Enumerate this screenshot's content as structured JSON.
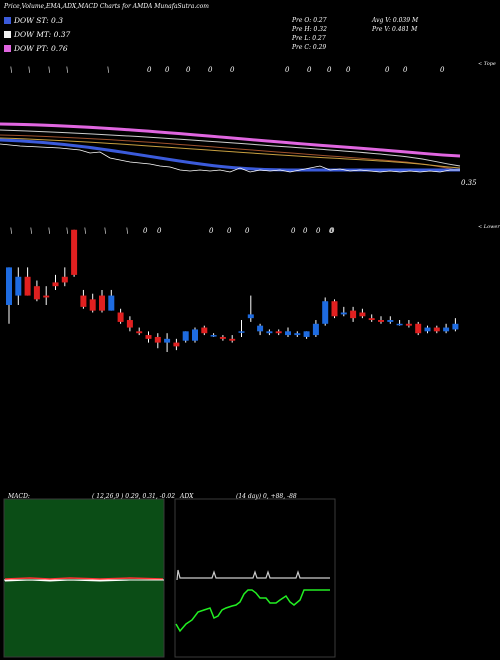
{
  "header": {
    "title": "Price,Volume,EMA,ADX,MACD Charts for AMDA MunafaSutra.com"
  },
  "legend": [
    {
      "label": "DOW ST: 0.3",
      "color": "#3b5bdb"
    },
    {
      "label": "DOW MT: 0.37",
      "color": "#f2f2f2"
    },
    {
      "label": "DOW PT: 0.76",
      "color": "#e066e0"
    }
  ],
  "stats": {
    "open": "Pre  O: 0.27",
    "high": "Pre  H: 0.32",
    "low": "Pre  L: 0.27",
    "close": "Pre  C: 0.29",
    "avg_volume": "Avg V: 0.039 M",
    "prev_volume": "Pre  V: 0.481 M"
  },
  "top_panel": {
    "corner_label": "< Tope",
    "price_label": "0.35",
    "signal_marks": [
      "\\",
      "\\",
      "\\",
      "\\",
      "\\",
      "0",
      "0",
      "0",
      "0",
      "0",
      "0",
      "0",
      "0",
      "0",
      "0",
      "0",
      "0"
    ]
  },
  "candle_panel": {
    "corner_label": "< Lower",
    "signal_marks": [
      "\\",
      "\\",
      "\\",
      "\\",
      "\\",
      "\\",
      "\\",
      "0",
      "0",
      "0",
      "0",
      "0",
      "0",
      "0",
      "0",
      "0",
      "0"
    ]
  },
  "macd_panel": {
    "name": "MACD:",
    "params": "( 12,26,9 ) 0.29, 0.31, -0.02"
  },
  "adx_panel": {
    "name": "ADX",
    "params": "(14  day) 0, +88, -88"
  },
  "colors": {
    "up": "#1e6be0",
    "down": "#e02020",
    "wick": "#ffffff",
    "macd_bg": "#0b4d16",
    "ema_short": "#3b5bdb",
    "ema_mid": "#f2f2f2",
    "ema_long": "#e066e0",
    "adx_green": "#22ee22",
    "adx_white": "#cccccc"
  },
  "chart_data": {
    "type": "candlestick",
    "candles": [
      {
        "o": 0.28,
        "h": 0.3,
        "l": 0.27,
        "c": 0.3
      },
      {
        "o": 0.285,
        "h": 0.3,
        "l": 0.28,
        "c": 0.295
      },
      {
        "o": 0.295,
        "h": 0.3,
        "l": 0.285,
        "c": 0.285
      },
      {
        "o": 0.29,
        "h": 0.293,
        "l": 0.282,
        "c": 0.283
      },
      {
        "o": 0.285,
        "h": 0.29,
        "l": 0.28,
        "c": 0.284
      },
      {
        "o": 0.292,
        "h": 0.296,
        "l": 0.288,
        "c": 0.29
      },
      {
        "o": 0.295,
        "h": 0.3,
        "l": 0.29,
        "c": 0.292
      },
      {
        "o": 0.32,
        "h": 0.32,
        "l": 0.295,
        "c": 0.296
      },
      {
        "o": 0.285,
        "h": 0.288,
        "l": 0.278,
        "c": 0.279
      },
      {
        "o": 0.283,
        "h": 0.286,
        "l": 0.276,
        "c": 0.277
      },
      {
        "o": 0.285,
        "h": 0.288,
        "l": 0.276,
        "c": 0.277
      },
      {
        "o": 0.277,
        "h": 0.288,
        "l": 0.277,
        "c": 0.285
      },
      {
        "o": 0.276,
        "h": 0.278,
        "l": 0.27,
        "c": 0.271
      },
      {
        "o": 0.272,
        "h": 0.274,
        "l": 0.266,
        "c": 0.268
      },
      {
        "o": 0.266,
        "h": 0.268,
        "l": 0.264,
        "c": 0.265
      },
      {
        "o": 0.264,
        "h": 0.266,
        "l": 0.26,
        "c": 0.262
      },
      {
        "o": 0.263,
        "h": 0.265,
        "l": 0.257,
        "c": 0.26
      },
      {
        "o": 0.26,
        "h": 0.265,
        "l": 0.255,
        "c": 0.262
      },
      {
        "o": 0.26,
        "h": 0.262,
        "l": 0.256,
        "c": 0.258
      },
      {
        "o": 0.261,
        "h": 0.266,
        "l": 0.26,
        "c": 0.266
      },
      {
        "o": 0.261,
        "h": 0.268,
        "l": 0.26,
        "c": 0.267
      },
      {
        "o": 0.268,
        "h": 0.269,
        "l": 0.264,
        "c": 0.265
      },
      {
        "o": 0.264,
        "h": 0.265,
        "l": 0.263,
        "c": 0.264
      },
      {
        "o": 0.263,
        "h": 0.264,
        "l": 0.261,
        "c": 0.262
      },
      {
        "o": 0.262,
        "h": 0.264,
        "l": 0.26,
        "c": 0.261
      },
      {
        "o": 0.266,
        "h": 0.272,
        "l": 0.263,
        "c": 0.266
      },
      {
        "o": 0.273,
        "h": 0.285,
        "l": 0.271,
        "c": 0.275
      },
      {
        "o": 0.266,
        "h": 0.27,
        "l": 0.264,
        "c": 0.269
      },
      {
        "o": 0.265,
        "h": 0.267,
        "l": 0.264,
        "c": 0.266
      },
      {
        "o": 0.266,
        "h": 0.267,
        "l": 0.264,
        "c": 0.265
      },
      {
        "o": 0.264,
        "h": 0.268,
        "l": 0.263,
        "c": 0.266
      },
      {
        "o": 0.264,
        "h": 0.266,
        "l": 0.263,
        "c": 0.265
      },
      {
        "o": 0.263,
        "h": 0.266,
        "l": 0.262,
        "c": 0.266
      },
      {
        "o": 0.264,
        "h": 0.272,
        "l": 0.263,
        "c": 0.27
      },
      {
        "o": 0.27,
        "h": 0.284,
        "l": 0.269,
        "c": 0.282
      },
      {
        "o": 0.282,
        "h": 0.283,
        "l": 0.273,
        "c": 0.274
      },
      {
        "o": 0.275,
        "h": 0.279,
        "l": 0.274,
        "c": 0.276
      },
      {
        "o": 0.277,
        "h": 0.279,
        "l": 0.271,
        "c": 0.273
      },
      {
        "o": 0.276,
        "h": 0.278,
        "l": 0.273,
        "c": 0.274
      },
      {
        "o": 0.273,
        "h": 0.275,
        "l": 0.271,
        "c": 0.272
      },
      {
        "o": 0.272,
        "h": 0.274,
        "l": 0.27,
        "c": 0.271
      },
      {
        "o": 0.271,
        "h": 0.274,
        "l": 0.27,
        "c": 0.272
      },
      {
        "o": 0.27,
        "h": 0.272,
        "l": 0.269,
        "c": 0.27
      },
      {
        "o": 0.27,
        "h": 0.272,
        "l": 0.268,
        "c": 0.269
      },
      {
        "o": 0.27,
        "h": 0.271,
        "l": 0.264,
        "c": 0.265
      },
      {
        "o": 0.266,
        "h": 0.269,
        "l": 0.265,
        "c": 0.268
      },
      {
        "o": 0.268,
        "h": 0.269,
        "l": 0.265,
        "c": 0.266
      },
      {
        "o": 0.266,
        "h": 0.27,
        "l": 0.265,
        "c": 0.268
      },
      {
        "o": 0.267,
        "h": 0.273,
        "l": 0.266,
        "c": 0.27
      }
    ]
  }
}
